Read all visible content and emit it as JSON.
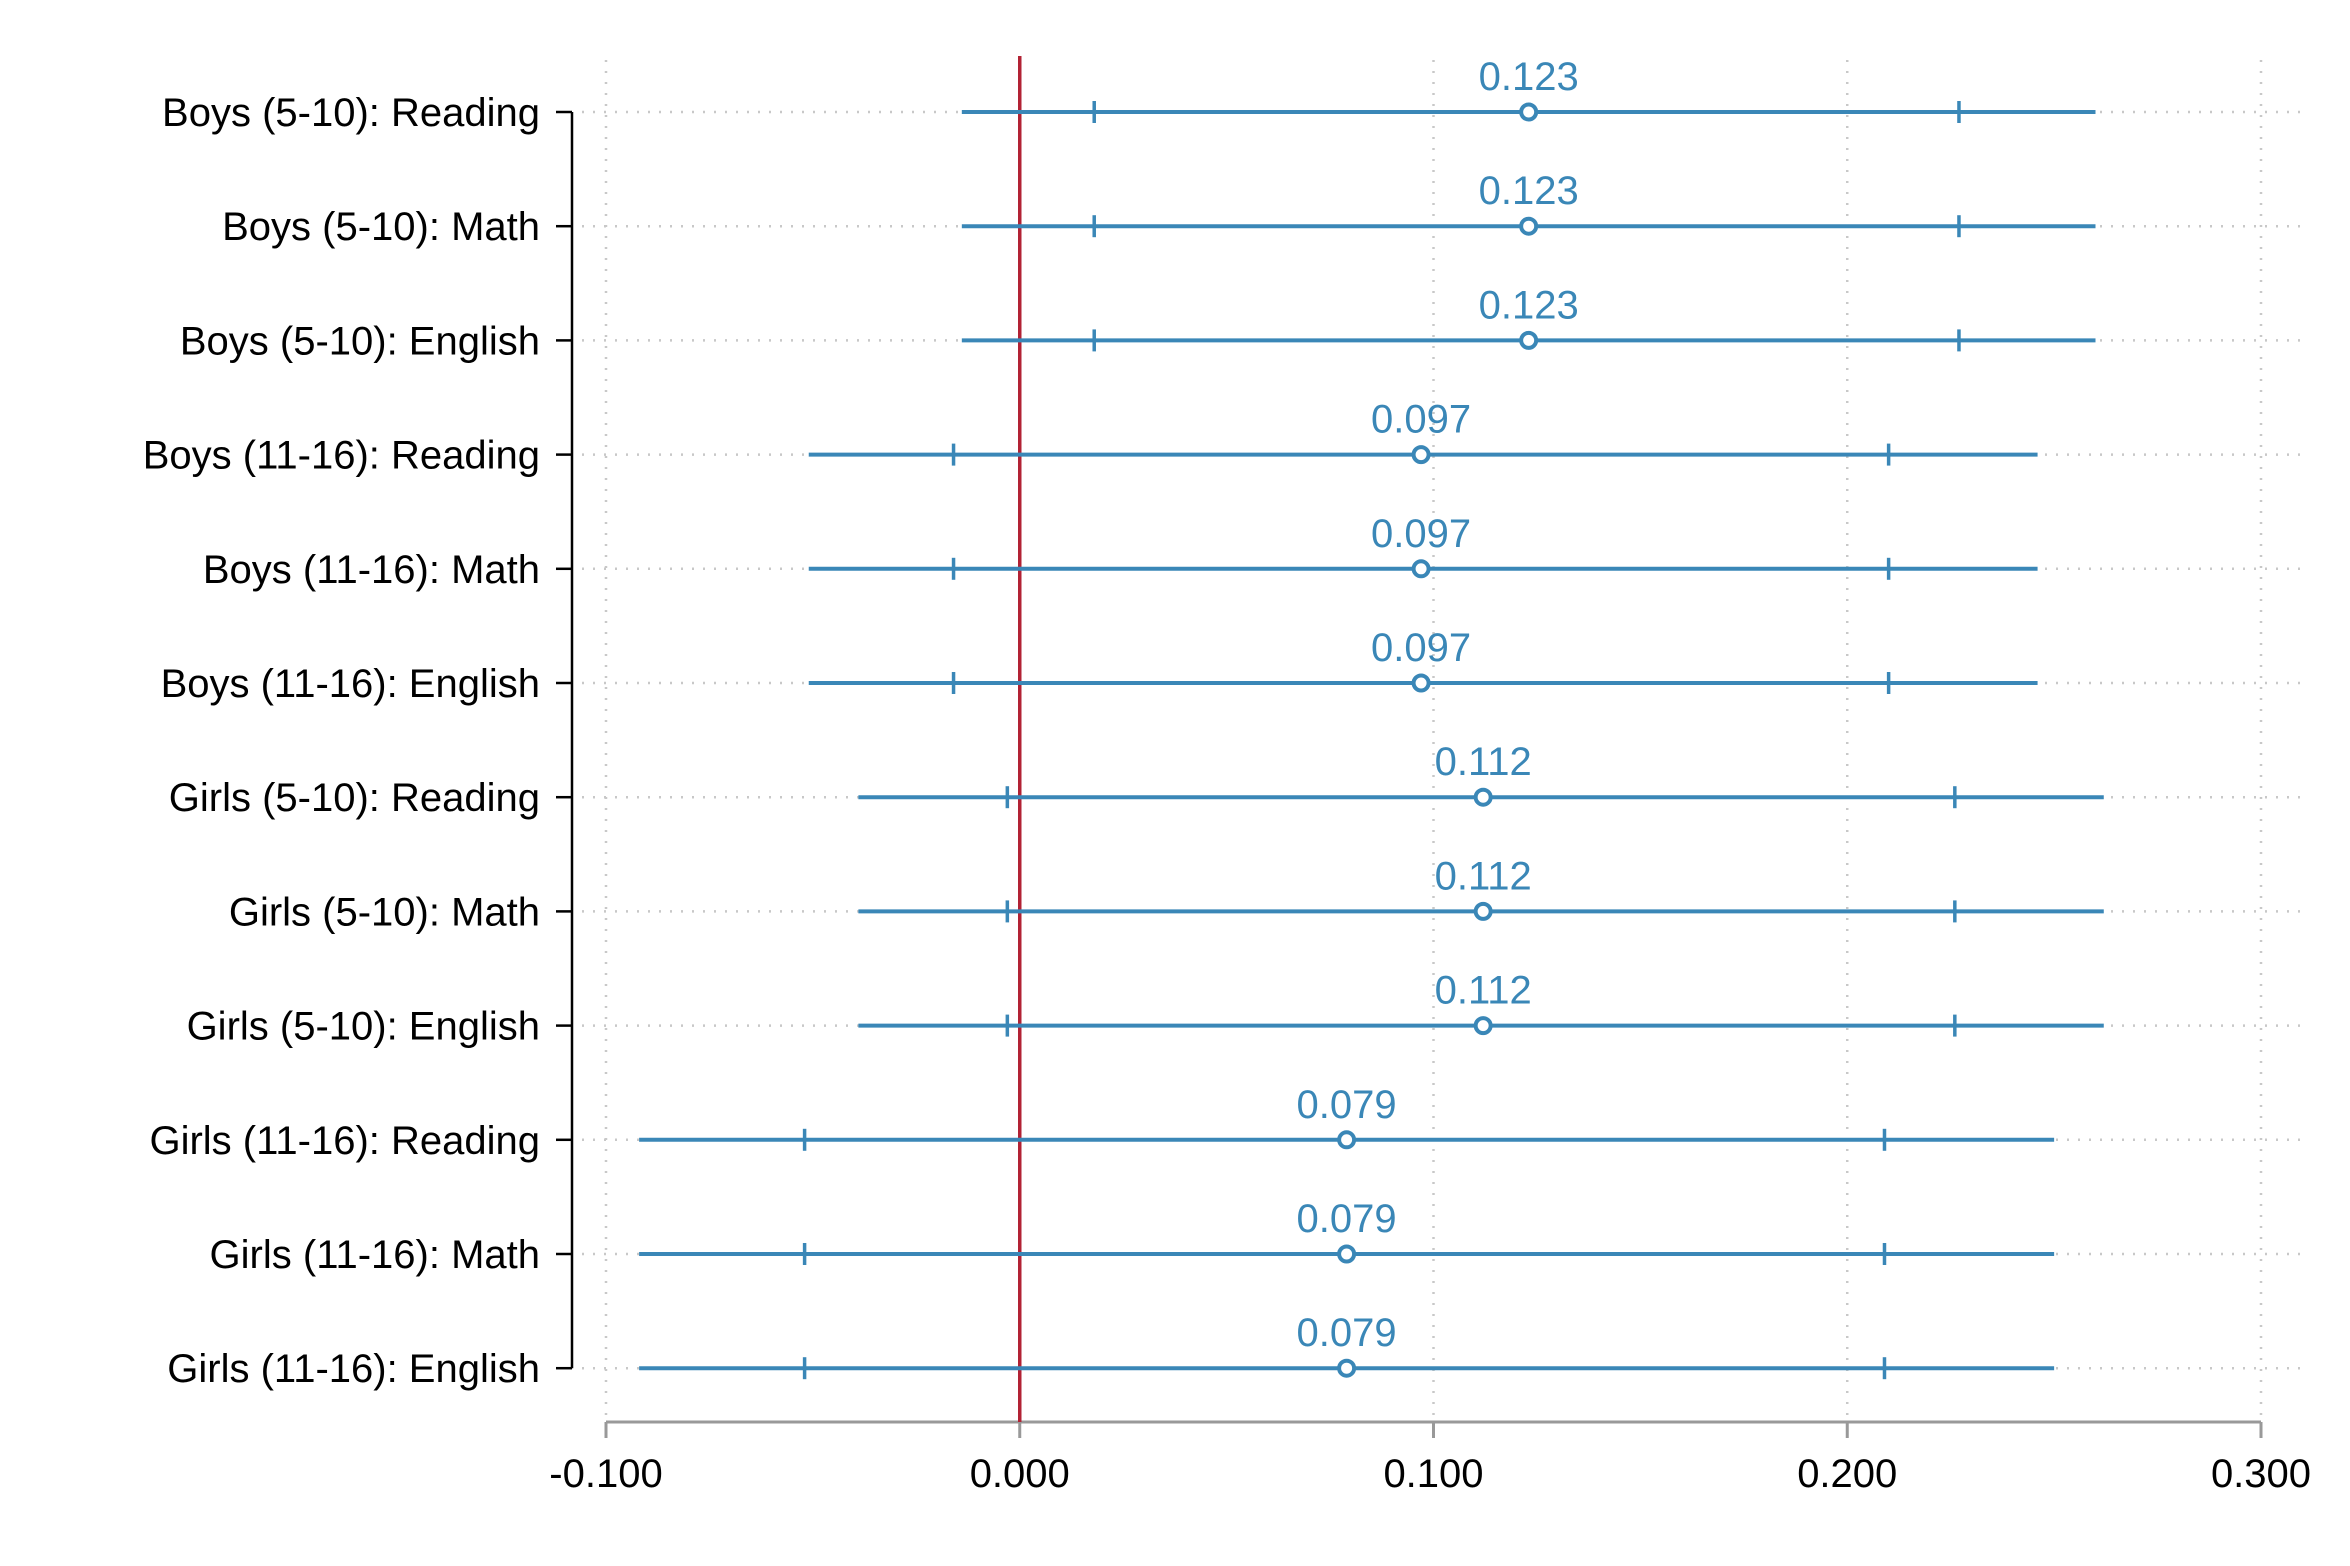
{
  "chart_data": {
    "type": "coefficient-plot",
    "title": "",
    "xlabel": "",
    "ylabel": "",
    "xlim": [
      -0.1,
      0.3
    ],
    "x_ticks": [
      -0.1,
      0.0,
      0.1,
      0.2,
      0.3
    ],
    "x_tick_labels": [
      "-0.100",
      "0.000",
      "0.100",
      "0.200",
      "0.300"
    ],
    "reference_line": {
      "x": 0.0,
      "color": "#b22234"
    },
    "series_color": "#3a87b7",
    "grid": true,
    "rows": [
      {
        "label": "Boys (5-10): Reading",
        "estimate": 0.123,
        "value_label": "0.123",
        "ci_outer": [
          -0.014,
          0.26
        ],
        "ci_inner": [
          0.018,
          0.227
        ]
      },
      {
        "label": "Boys (5-10): Math",
        "estimate": 0.123,
        "value_label": "0.123",
        "ci_outer": [
          -0.014,
          0.26
        ],
        "ci_inner": [
          0.018,
          0.227
        ]
      },
      {
        "label": "Boys (5-10): English",
        "estimate": 0.123,
        "value_label": "0.123",
        "ci_outer": [
          -0.014,
          0.26
        ],
        "ci_inner": [
          0.018,
          0.227
        ]
      },
      {
        "label": "Boys (11-16): Reading",
        "estimate": 0.097,
        "value_label": "0.097",
        "ci_outer": [
          -0.051,
          0.246
        ],
        "ci_inner": [
          -0.016,
          0.21
        ]
      },
      {
        "label": "Boys (11-16): Math",
        "estimate": 0.097,
        "value_label": "0.097",
        "ci_outer": [
          -0.051,
          0.246
        ],
        "ci_inner": [
          -0.016,
          0.21
        ]
      },
      {
        "label": "Boys (11-16): English",
        "estimate": 0.097,
        "value_label": "0.097",
        "ci_outer": [
          -0.051,
          0.246
        ],
        "ci_inner": [
          -0.016,
          0.21
        ]
      },
      {
        "label": "Girls (5-10): Reading",
        "estimate": 0.112,
        "value_label": "0.112",
        "ci_outer": [
          -0.039,
          0.262
        ],
        "ci_inner": [
          -0.003,
          0.226
        ]
      },
      {
        "label": "Girls (5-10): Math",
        "estimate": 0.112,
        "value_label": "0.112",
        "ci_outer": [
          -0.039,
          0.262
        ],
        "ci_inner": [
          -0.003,
          0.226
        ]
      },
      {
        "label": "Girls (5-10): English",
        "estimate": 0.112,
        "value_label": "0.112",
        "ci_outer": [
          -0.039,
          0.262
        ],
        "ci_inner": [
          -0.003,
          0.226
        ]
      },
      {
        "label": "Girls (11-16): Reading",
        "estimate": 0.079,
        "value_label": "0.079",
        "ci_outer": [
          -0.092,
          0.25
        ],
        "ci_inner": [
          -0.052,
          0.209
        ]
      },
      {
        "label": "Girls (11-16): Math",
        "estimate": 0.079,
        "value_label": "0.079",
        "ci_outer": [
          -0.092,
          0.25
        ],
        "ci_inner": [
          -0.052,
          0.209
        ]
      },
      {
        "label": "Girls (11-16): English",
        "estimate": 0.079,
        "value_label": "0.079",
        "ci_outer": [
          -0.092,
          0.25
        ],
        "ci_inner": [
          -0.052,
          0.209
        ]
      }
    ]
  }
}
